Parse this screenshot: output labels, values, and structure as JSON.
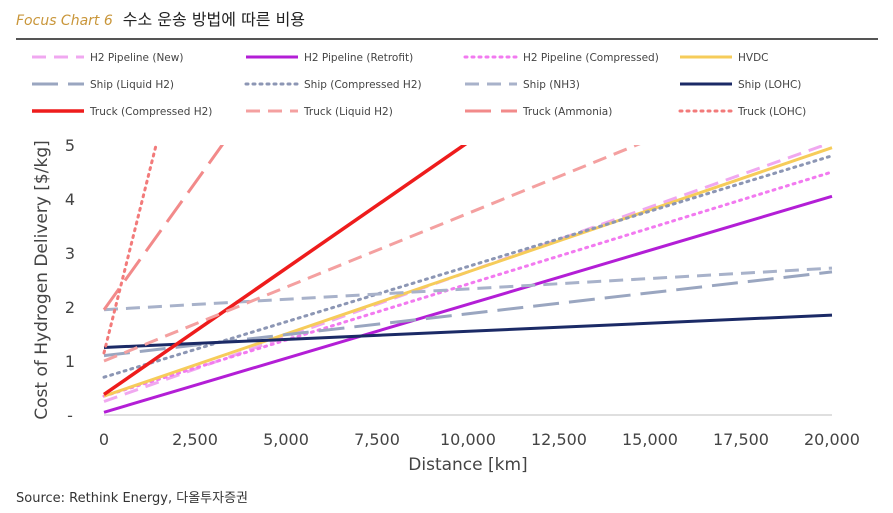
{
  "header": {
    "label": "Focus Chart 6",
    "title": "수소 운송 방법에 따른 비용"
  },
  "source": "Source: Rethink Energy, 다올투자증권",
  "chart_data": {
    "type": "line",
    "xlabel": "Distance [km]",
    "ylabel": "Cost of Hydrogen Delivery [$/kg]",
    "xlim": [
      0,
      20000
    ],
    "ylim": [
      0,
      5
    ],
    "xticks": [
      "0",
      "2,500",
      "5,000",
      "7,500",
      "10,000",
      "12,500",
      "15,000",
      "17,500",
      "20,000"
    ],
    "xtick_values": [
      0,
      2500,
      5000,
      7500,
      10000,
      12500,
      15000,
      17500,
      20000
    ],
    "yticks": [
      "-",
      "1",
      "2",
      "3",
      "4",
      "5"
    ],
    "ytick_values": [
      0,
      1,
      2,
      3,
      4,
      5
    ],
    "grid": false,
    "legend_position": "top",
    "series": [
      {
        "name": "H2 Pipeline (New)",
        "color": "#f0a8f0",
        "dash": "dash",
        "width": 3,
        "points": [
          [
            0,
            0.25
          ],
          [
            20000,
            5.05
          ]
        ]
      },
      {
        "name": "H2 Pipeline (Retrofit)",
        "color": "#b31ed6",
        "dash": "solid",
        "width": 3,
        "points": [
          [
            0,
            0.05
          ],
          [
            20000,
            4.05
          ]
        ]
      },
      {
        "name": "H2 Pipeline (Compressed)",
        "color": "#f27af0",
        "dash": "dot",
        "width": 3,
        "points": [
          [
            0,
            0.35
          ],
          [
            20000,
            4.5
          ]
        ]
      },
      {
        "name": "HVDC",
        "color": "#f6cc5a",
        "dash": "solid",
        "width": 3,
        "points": [
          [
            0,
            0.35
          ],
          [
            20000,
            4.95
          ]
        ]
      },
      {
        "name": "Ship (Liquid H2)",
        "color": "#9aa6c0",
        "dash": "longdash",
        "width": 3,
        "points": [
          [
            0,
            1.1
          ],
          [
            20000,
            2.65
          ]
        ]
      },
      {
        "name": "Ship (Compressed H2)",
        "color": "#8c96b4",
        "dash": "dot",
        "width": 3,
        "points": [
          [
            0,
            0.7
          ],
          [
            20000,
            4.8
          ]
        ]
      },
      {
        "name": "Ship (NH3)",
        "color": "#a8b2ca",
        "dash": "dash",
        "width": 3,
        "points": [
          [
            0,
            1.95
          ],
          [
            20000,
            2.72
          ]
        ]
      },
      {
        "name": "Ship (LOHC)",
        "color": "#1b2a66",
        "dash": "solid",
        "width": 3,
        "points": [
          [
            0,
            1.25
          ],
          [
            20000,
            1.85
          ]
        ]
      },
      {
        "name": "Truck (Compressed H2)",
        "color": "#ee1c1c",
        "dash": "solid",
        "width": 3.5,
        "points": [
          [
            0,
            0.38
          ],
          [
            10000,
            5.05
          ]
        ]
      },
      {
        "name": "Truck (Liquid H2)",
        "color": "#f4a0a0",
        "dash": "dash",
        "width": 3,
        "points": [
          [
            0,
            1.0
          ],
          [
            15000,
            5.1
          ]
        ]
      },
      {
        "name": "Truck (Ammonia)",
        "color": "#f28a8a",
        "dash": "longdash",
        "width": 3,
        "points": [
          [
            0,
            1.95
          ],
          [
            3300,
            5.05
          ]
        ]
      },
      {
        "name": "Truck (LOHC)",
        "color": "#f27a7a",
        "dash": "dot",
        "width": 3,
        "points": [
          [
            0,
            1.15
          ],
          [
            1450,
            5.05
          ]
        ]
      }
    ]
  }
}
